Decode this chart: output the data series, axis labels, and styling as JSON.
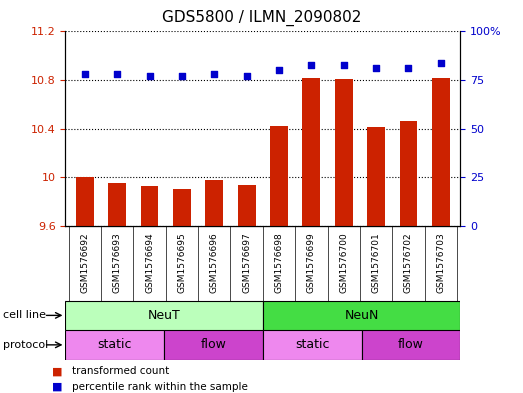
{
  "title": "GDS5800 / ILMN_2090802",
  "samples": [
    "GSM1576692",
    "GSM1576693",
    "GSM1576694",
    "GSM1576695",
    "GSM1576696",
    "GSM1576697",
    "GSM1576698",
    "GSM1576699",
    "GSM1576700",
    "GSM1576701",
    "GSM1576702",
    "GSM1576703"
  ],
  "bar_values": [
    10.0,
    9.95,
    9.93,
    9.9,
    9.98,
    9.94,
    10.42,
    10.82,
    10.81,
    10.41,
    10.46,
    10.82
  ],
  "blue_values": [
    78,
    78,
    77,
    77,
    78,
    77,
    80,
    83,
    83,
    81,
    81,
    84
  ],
  "ylim_left": [
    9.6,
    11.2
  ],
  "ylim_right": [
    0,
    100
  ],
  "yticks_left": [
    9.6,
    10.0,
    10.4,
    10.8,
    11.2
  ],
  "yticks_right": [
    0,
    25,
    50,
    75,
    100
  ],
  "ytick_labels_left": [
    "9.6",
    "10",
    "10.4",
    "10.8",
    "11.2"
  ],
  "ytick_labels_right": [
    "0",
    "25",
    "50",
    "75",
    "100%"
  ],
  "bar_color": "#cc2200",
  "dot_color": "#0000cc",
  "grid_color": "#000000",
  "cell_line_groups": [
    {
      "label": "NeuT",
      "start": 0,
      "end": 6,
      "color": "#bbffbb"
    },
    {
      "label": "NeuN",
      "start": 6,
      "end": 12,
      "color": "#44dd44"
    }
  ],
  "protocol_groups": [
    {
      "label": "static",
      "start": 0,
      "end": 3,
      "color": "#ee88ee"
    },
    {
      "label": "flow",
      "start": 3,
      "end": 6,
      "color": "#cc44cc"
    },
    {
      "label": "static",
      "start": 6,
      "end": 9,
      "color": "#ee88ee"
    },
    {
      "label": "flow",
      "start": 9,
      "end": 12,
      "color": "#cc44cc"
    }
  ],
  "bg_color": "#cccccc",
  "legend_items": [
    {
      "label": "transformed count",
      "color": "#cc2200"
    },
    {
      "label": "percentile rank within the sample",
      "color": "#0000cc"
    }
  ]
}
